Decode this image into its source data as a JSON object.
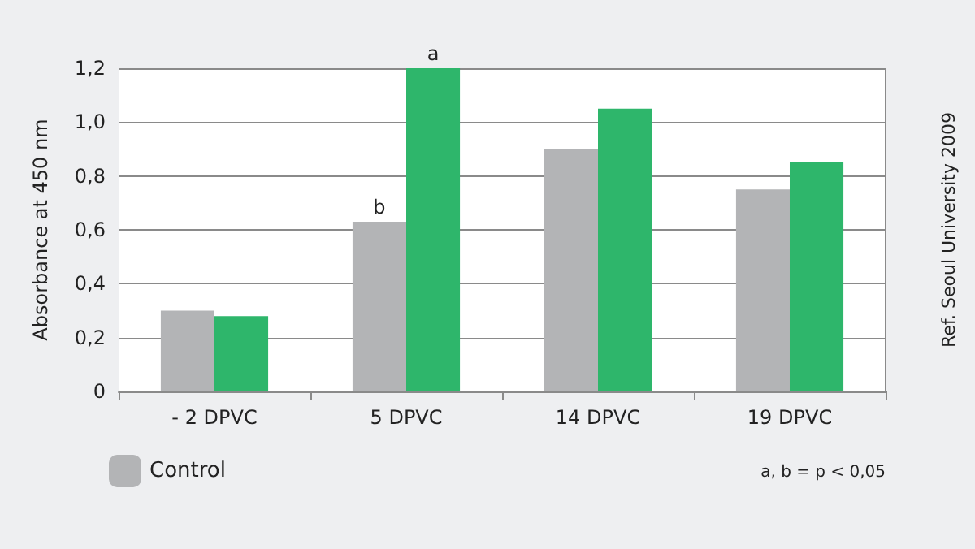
{
  "chart_data": {
    "type": "bar",
    "ylabel": "Absorbance at 450 nm",
    "categories": [
      "- 2 DPVC",
      "5 DPVC",
      "14 DPVC",
      "19 DPVC"
    ],
    "series": [
      {
        "name": "Control",
        "color": "#b3b4b6",
        "values": [
          0.3,
          0.63,
          0.9,
          0.75
        ]
      },
      {
        "color": "#2eb66b",
        "values": [
          0.28,
          1.2,
          1.05,
          0.85
        ]
      }
    ],
    "ylim": [
      0,
      1.2
    ],
    "yticks": [
      0,
      {
        "value": 0.2,
        "label": "0,2"
      },
      {
        "value": 0.4,
        "label": "0,4"
      },
      {
        "value": 0.6,
        "label": "0,6"
      },
      {
        "value": 0.8,
        "label": "0,8"
      },
      {
        "value": 1.0,
        "label": "1,0"
      },
      {
        "value": 1.2,
        "label": "1,2"
      }
    ],
    "grid": "y",
    "legend": "bottom left",
    "annotations": [
      {
        "text": "a",
        "x": "5 DPVC",
        "y": 1.2
      },
      {
        "text": "b",
        "x": "5 DPVC",
        "y": 0.63
      },
      "a, b = p < 0,05",
      "Ref. Seoul University 2009"
    ]
  }
}
